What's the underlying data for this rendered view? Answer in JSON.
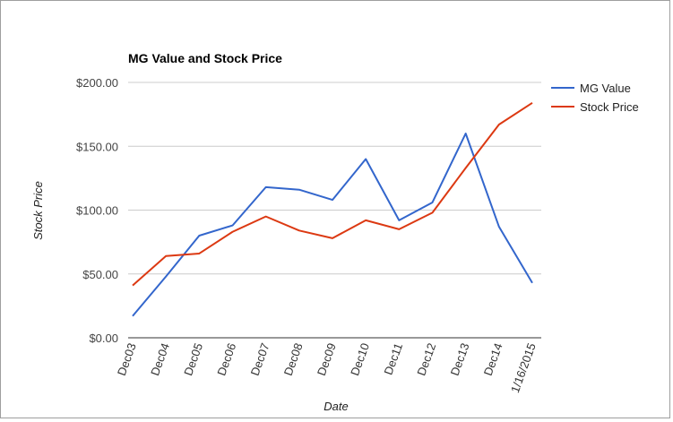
{
  "chart_data": {
    "type": "line",
    "title": "MG Value and Stock Price",
    "xlabel": "Date",
    "ylabel": "Stock Price",
    "categories": [
      "Dec03",
      "Dec04",
      "Dec05",
      "Dec06",
      "Dec07",
      "Dec08",
      "Dec09",
      "Dec10",
      "Dec11",
      "Dec12",
      "Dec13",
      "Dec14",
      "1/16/2015"
    ],
    "y_ticks": [
      "$0.00",
      "$50.00",
      "$100.00",
      "$150.00",
      "$200.00"
    ],
    "ylim": [
      0,
      200
    ],
    "grid": true,
    "legend_position": "right",
    "series": [
      {
        "name": "MG Value",
        "color": "#3366cc",
        "values": [
          17,
          48,
          80,
          88,
          118,
          116,
          108,
          140,
          92,
          106,
          160,
          87,
          43
        ]
      },
      {
        "name": "Stock Price",
        "color": "#dc3912",
        "values": [
          41,
          64,
          66,
          83,
          95,
          84,
          78,
          92,
          85,
          98,
          133,
          167,
          184
        ]
      }
    ]
  }
}
